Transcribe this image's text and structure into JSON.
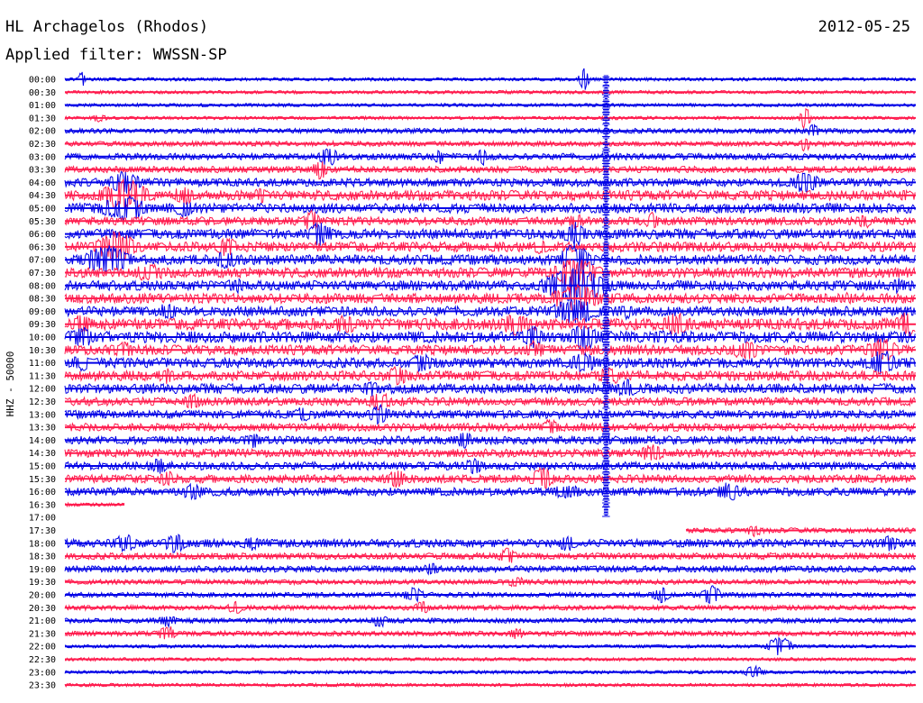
{
  "header": {
    "station": "HL Archagelos (Rhodos)",
    "date": "2012-05-25",
    "filter": "Applied filter: WWSSN-SP"
  },
  "chart_data": {
    "type": "line",
    "title": "HL Archagelos (Rhodos)",
    "ylabel": "HHZ - 50000",
    "xlabel": "",
    "series_colors": [
      "#0000e6",
      "#ff1a4d"
    ],
    "rows": [
      {
        "label": "00:00",
        "start": 0.0,
        "end": 1.0,
        "amp": 2
      },
      {
        "label": "00:30",
        "start": 0.0,
        "end": 1.0,
        "amp": 2
      },
      {
        "label": "01:00",
        "start": 0.0,
        "end": 1.0,
        "amp": 2
      },
      {
        "label": "01:30",
        "start": 0.0,
        "end": 1.0,
        "amp": 2
      },
      {
        "label": "02:00",
        "start": 0.0,
        "end": 1.0,
        "amp": 3
      },
      {
        "label": "02:30",
        "start": 0.0,
        "end": 1.0,
        "amp": 3
      },
      {
        "label": "03:00",
        "start": 0.0,
        "end": 1.0,
        "amp": 4
      },
      {
        "label": "03:30",
        "start": 0.0,
        "end": 1.0,
        "amp": 4
      },
      {
        "label": "04:00",
        "start": 0.0,
        "end": 1.0,
        "amp": 5
      },
      {
        "label": "04:30",
        "start": 0.0,
        "end": 1.0,
        "amp": 6
      },
      {
        "label": "05:00",
        "start": 0.0,
        "end": 1.0,
        "amp": 6
      },
      {
        "label": "05:30",
        "start": 0.0,
        "end": 1.0,
        "amp": 5
      },
      {
        "label": "06:00",
        "start": 0.0,
        "end": 1.0,
        "amp": 6
      },
      {
        "label": "06:30",
        "start": 0.0,
        "end": 1.0,
        "amp": 6
      },
      {
        "label": "07:00",
        "start": 0.0,
        "end": 1.0,
        "amp": 6
      },
      {
        "label": "07:30",
        "start": 0.0,
        "end": 1.0,
        "amp": 6
      },
      {
        "label": "08:00",
        "start": 0.0,
        "end": 1.0,
        "amp": 6
      },
      {
        "label": "08:30",
        "start": 0.0,
        "end": 1.0,
        "amp": 6
      },
      {
        "label": "09:00",
        "start": 0.0,
        "end": 1.0,
        "amp": 6
      },
      {
        "label": "09:30",
        "start": 0.0,
        "end": 1.0,
        "amp": 7
      },
      {
        "label": "10:00",
        "start": 0.0,
        "end": 1.0,
        "amp": 7
      },
      {
        "label": "10:30",
        "start": 0.0,
        "end": 1.0,
        "amp": 6
      },
      {
        "label": "11:00",
        "start": 0.0,
        "end": 1.0,
        "amp": 6
      },
      {
        "label": "11:30",
        "start": 0.0,
        "end": 1.0,
        "amp": 6
      },
      {
        "label": "12:00",
        "start": 0.0,
        "end": 1.0,
        "amp": 6
      },
      {
        "label": "12:30",
        "start": 0.0,
        "end": 1.0,
        "amp": 5
      },
      {
        "label": "13:00",
        "start": 0.0,
        "end": 1.0,
        "amp": 5
      },
      {
        "label": "13:30",
        "start": 0.0,
        "end": 1.0,
        "amp": 5
      },
      {
        "label": "14:00",
        "start": 0.0,
        "end": 1.0,
        "amp": 5
      },
      {
        "label": "14:30",
        "start": 0.0,
        "end": 1.0,
        "amp": 5
      },
      {
        "label": "15:00",
        "start": 0.0,
        "end": 1.0,
        "amp": 5
      },
      {
        "label": "15:30",
        "start": 0.0,
        "end": 1.0,
        "amp": 5
      },
      {
        "label": "16:00",
        "start": 0.0,
        "end": 1.0,
        "amp": 5
      },
      {
        "label": "16:30",
        "start": 0.0,
        "end": 0.07,
        "amp": 2
      },
      {
        "label": "17:00",
        "start": 0,
        "end": 0,
        "amp": 0
      },
      {
        "label": "17:30",
        "start": 0.73,
        "end": 1.0,
        "amp": 3
      },
      {
        "label": "18:00",
        "start": 0.0,
        "end": 1.0,
        "amp": 5
      },
      {
        "label": "18:30",
        "start": 0.0,
        "end": 1.0,
        "amp": 4
      },
      {
        "label": "19:00",
        "start": 0.0,
        "end": 1.0,
        "amp": 4
      },
      {
        "label": "19:30",
        "start": 0.0,
        "end": 1.0,
        "amp": 3
      },
      {
        "label": "20:00",
        "start": 0.0,
        "end": 1.0,
        "amp": 3
      },
      {
        "label": "20:30",
        "start": 0.0,
        "end": 1.0,
        "amp": 3
      },
      {
        "label": "21:00",
        "start": 0.0,
        "end": 1.0,
        "amp": 3
      },
      {
        "label": "21:30",
        "start": 0.0,
        "end": 1.0,
        "amp": 3
      },
      {
        "label": "22:00",
        "start": 0.0,
        "end": 1.0,
        "amp": 2
      },
      {
        "label": "22:30",
        "start": 0.0,
        "end": 1.0,
        "amp": 2
      },
      {
        "label": "23:00",
        "start": 0.0,
        "end": 1.0,
        "amp": 2
      },
      {
        "label": "23:30",
        "start": 0.0,
        "end": 1.0,
        "amp": 2
      }
    ],
    "events": [
      {
        "row": 0,
        "pos": 0.02,
        "amp": 10,
        "dur": 0.004
      },
      {
        "row": 0,
        "pos": 0.61,
        "amp": 14,
        "dur": 0.006
      },
      {
        "row": 3,
        "pos": 0.04,
        "amp": 5,
        "dur": 0.01
      },
      {
        "row": 3,
        "pos": 0.87,
        "amp": 14,
        "dur": 0.006
      },
      {
        "row": 4,
        "pos": 0.88,
        "amp": 10,
        "dur": 0.006
      },
      {
        "row": 5,
        "pos": 0.87,
        "amp": 10,
        "dur": 0.006
      },
      {
        "row": 6,
        "pos": 0.31,
        "amp": 12,
        "dur": 0.012
      },
      {
        "row": 6,
        "pos": 0.44,
        "amp": 10,
        "dur": 0.006
      },
      {
        "row": 6,
        "pos": 0.49,
        "amp": 12,
        "dur": 0.006
      },
      {
        "row": 7,
        "pos": 0.3,
        "amp": 12,
        "dur": 0.01
      },
      {
        "row": 8,
        "pos": 0.07,
        "amp": 14,
        "dur": 0.02
      },
      {
        "row": 8,
        "pos": 0.87,
        "amp": 14,
        "dur": 0.02
      },
      {
        "row": 9,
        "pos": 0.07,
        "amp": 20,
        "dur": 0.03
      },
      {
        "row": 9,
        "pos": 0.14,
        "amp": 12,
        "dur": 0.015
      },
      {
        "row": 9,
        "pos": 0.23,
        "amp": 10,
        "dur": 0.01
      },
      {
        "row": 10,
        "pos": 0.07,
        "amp": 16,
        "dur": 0.03
      },
      {
        "row": 10,
        "pos": 0.14,
        "amp": 12,
        "dur": 0.012
      },
      {
        "row": 11,
        "pos": 0.29,
        "amp": 14,
        "dur": 0.01
      },
      {
        "row": 11,
        "pos": 0.6,
        "amp": 12,
        "dur": 0.008
      },
      {
        "row": 11,
        "pos": 0.69,
        "amp": 12,
        "dur": 0.008
      },
      {
        "row": 11,
        "pos": 0.94,
        "amp": 10,
        "dur": 0.008
      },
      {
        "row": 12,
        "pos": 0.3,
        "amp": 16,
        "dur": 0.015
      },
      {
        "row": 12,
        "pos": 0.6,
        "amp": 16,
        "dur": 0.015
      },
      {
        "row": 13,
        "pos": 0.06,
        "amp": 20,
        "dur": 0.025
      },
      {
        "row": 13,
        "pos": 0.19,
        "amp": 12,
        "dur": 0.015
      },
      {
        "row": 13,
        "pos": 0.56,
        "amp": 10,
        "dur": 0.01
      },
      {
        "row": 14,
        "pos": 0.05,
        "amp": 18,
        "dur": 0.03
      },
      {
        "row": 14,
        "pos": 0.19,
        "amp": 12,
        "dur": 0.015
      },
      {
        "row": 14,
        "pos": 0.6,
        "amp": 20,
        "dur": 0.02
      },
      {
        "row": 15,
        "pos": 0.1,
        "amp": 12,
        "dur": 0.02
      },
      {
        "row": 15,
        "pos": 0.6,
        "amp": 18,
        "dur": 0.03
      },
      {
        "row": 16,
        "pos": 0.6,
        "amp": 22,
        "dur": 0.04
      },
      {
        "row": 16,
        "pos": 0.2,
        "amp": 10,
        "dur": 0.015
      },
      {
        "row": 16,
        "pos": 0.98,
        "amp": 10,
        "dur": 0.01
      },
      {
        "row": 17,
        "pos": 0.6,
        "amp": 18,
        "dur": 0.03
      },
      {
        "row": 17,
        "pos": 0.92,
        "amp": 8,
        "dur": 0.01
      },
      {
        "row": 18,
        "pos": 0.12,
        "amp": 10,
        "dur": 0.015
      },
      {
        "row": 18,
        "pos": 0.6,
        "amp": 16,
        "dur": 0.03
      },
      {
        "row": 18,
        "pos": 0.66,
        "amp": 10,
        "dur": 0.01
      },
      {
        "row": 19,
        "pos": 0.02,
        "amp": 12,
        "dur": 0.015
      },
      {
        "row": 19,
        "pos": 0.33,
        "amp": 12,
        "dur": 0.015
      },
      {
        "row": 19,
        "pos": 0.53,
        "amp": 14,
        "dur": 0.02
      },
      {
        "row": 19,
        "pos": 0.72,
        "amp": 14,
        "dur": 0.02
      },
      {
        "row": 19,
        "pos": 0.99,
        "amp": 16,
        "dur": 0.015
      },
      {
        "row": 20,
        "pos": 0.02,
        "amp": 12,
        "dur": 0.02
      },
      {
        "row": 20,
        "pos": 0.55,
        "amp": 14,
        "dur": 0.015
      },
      {
        "row": 20,
        "pos": 0.61,
        "amp": 16,
        "dur": 0.02
      },
      {
        "row": 20,
        "pos": 0.7,
        "amp": 10,
        "dur": 0.01
      },
      {
        "row": 21,
        "pos": 0.07,
        "amp": 10,
        "dur": 0.015
      },
      {
        "row": 21,
        "pos": 0.55,
        "amp": 12,
        "dur": 0.015
      },
      {
        "row": 21,
        "pos": 0.8,
        "amp": 12,
        "dur": 0.02
      },
      {
        "row": 21,
        "pos": 0.96,
        "amp": 16,
        "dur": 0.02
      },
      {
        "row": 22,
        "pos": 0.02,
        "amp": 10,
        "dur": 0.015
      },
      {
        "row": 22,
        "pos": 0.42,
        "amp": 12,
        "dur": 0.015
      },
      {
        "row": 22,
        "pos": 0.61,
        "amp": 12,
        "dur": 0.02
      },
      {
        "row": 22,
        "pos": 0.96,
        "amp": 16,
        "dur": 0.02
      },
      {
        "row": 23,
        "pos": 0.12,
        "amp": 10,
        "dur": 0.012
      },
      {
        "row": 23,
        "pos": 0.39,
        "amp": 12,
        "dur": 0.015
      },
      {
        "row": 23,
        "pos": 0.64,
        "amp": 12,
        "dur": 0.015
      },
      {
        "row": 24,
        "pos": 0.36,
        "amp": 10,
        "dur": 0.012
      },
      {
        "row": 24,
        "pos": 0.66,
        "amp": 12,
        "dur": 0.015
      },
      {
        "row": 25,
        "pos": 0.15,
        "amp": 10,
        "dur": 0.012
      },
      {
        "row": 25,
        "pos": 0.37,
        "amp": 12,
        "dur": 0.015
      },
      {
        "row": 26,
        "pos": 0.28,
        "amp": 10,
        "dur": 0.012
      },
      {
        "row": 26,
        "pos": 0.37,
        "amp": 12,
        "dur": 0.015
      },
      {
        "row": 27,
        "pos": 0.57,
        "amp": 10,
        "dur": 0.012
      },
      {
        "row": 28,
        "pos": 0.22,
        "amp": 10,
        "dur": 0.012
      },
      {
        "row": 28,
        "pos": 0.47,
        "amp": 10,
        "dur": 0.012
      },
      {
        "row": 29,
        "pos": 0.69,
        "amp": 12,
        "dur": 0.015
      },
      {
        "row": 30,
        "pos": 0.11,
        "amp": 10,
        "dur": 0.012
      },
      {
        "row": 30,
        "pos": 0.48,
        "amp": 10,
        "dur": 0.012
      },
      {
        "row": 31,
        "pos": 0.12,
        "amp": 10,
        "dur": 0.012
      },
      {
        "row": 31,
        "pos": 0.39,
        "amp": 12,
        "dur": 0.012
      },
      {
        "row": 31,
        "pos": 0.56,
        "amp": 14,
        "dur": 0.015
      },
      {
        "row": 32,
        "pos": 0.15,
        "amp": 10,
        "dur": 0.015
      },
      {
        "row": 32,
        "pos": 0.59,
        "amp": 10,
        "dur": 0.02
      },
      {
        "row": 32,
        "pos": 0.78,
        "amp": 12,
        "dur": 0.015
      },
      {
        "row": 35,
        "pos": 0.81,
        "amp": 8,
        "dur": 0.01
      },
      {
        "row": 36,
        "pos": 0.07,
        "amp": 12,
        "dur": 0.015
      },
      {
        "row": 36,
        "pos": 0.13,
        "amp": 12,
        "dur": 0.015
      },
      {
        "row": 36,
        "pos": 0.22,
        "amp": 10,
        "dur": 0.012
      },
      {
        "row": 36,
        "pos": 0.59,
        "amp": 10,
        "dur": 0.012
      },
      {
        "row": 36,
        "pos": 0.97,
        "amp": 10,
        "dur": 0.012
      },
      {
        "row": 37,
        "pos": 0.52,
        "amp": 10,
        "dur": 0.012
      },
      {
        "row": 38,
        "pos": 0.43,
        "amp": 8,
        "dur": 0.01
      },
      {
        "row": 39,
        "pos": 0.53,
        "amp": 8,
        "dur": 0.01
      },
      {
        "row": 40,
        "pos": 0.41,
        "amp": 10,
        "dur": 0.012
      },
      {
        "row": 40,
        "pos": 0.7,
        "amp": 10,
        "dur": 0.012
      },
      {
        "row": 40,
        "pos": 0.76,
        "amp": 12,
        "dur": 0.012
      },
      {
        "row": 41,
        "pos": 0.2,
        "amp": 8,
        "dur": 0.01
      },
      {
        "row": 41,
        "pos": 0.42,
        "amp": 8,
        "dur": 0.01
      },
      {
        "row": 42,
        "pos": 0.12,
        "amp": 8,
        "dur": 0.012
      },
      {
        "row": 42,
        "pos": 0.37,
        "amp": 8,
        "dur": 0.012
      },
      {
        "row": 43,
        "pos": 0.12,
        "amp": 10,
        "dur": 0.012
      },
      {
        "row": 43,
        "pos": 0.53,
        "amp": 8,
        "dur": 0.01
      },
      {
        "row": 44,
        "pos": 0.84,
        "amp": 12,
        "dur": 0.015
      },
      {
        "row": 46,
        "pos": 0.81,
        "amp": 8,
        "dur": 0.012
      }
    ],
    "mega_events": [
      {
        "pos": 0.636,
        "from_row": 0,
        "to_row": 34,
        "color": "#0000e6"
      }
    ]
  }
}
